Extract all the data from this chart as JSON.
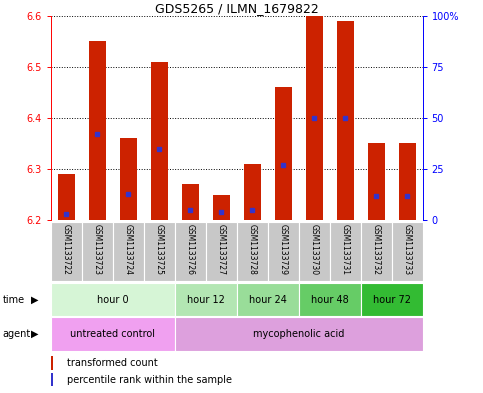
{
  "title": "GDS5265 / ILMN_1679822",
  "samples": [
    "GSM1133722",
    "GSM1133723",
    "GSM1133724",
    "GSM1133725",
    "GSM1133726",
    "GSM1133727",
    "GSM1133728",
    "GSM1133729",
    "GSM1133730",
    "GSM1133731",
    "GSM1133732",
    "GSM1133733"
  ],
  "bar_tops": [
    6.29,
    6.55,
    6.36,
    6.51,
    6.27,
    6.25,
    6.31,
    6.46,
    6.6,
    6.59,
    6.35,
    6.35
  ],
  "bar_bottom": 6.2,
  "ylim": [
    6.2,
    6.6
  ],
  "yticks_left": [
    6.2,
    6.3,
    6.4,
    6.5,
    6.6
  ],
  "yticks_right": [
    0,
    25,
    50,
    75,
    100
  ],
  "blue_percentiles": [
    3,
    42,
    13,
    35,
    5,
    4,
    5,
    27,
    50,
    50,
    12,
    12
  ],
  "bar_color": "#cc2200",
  "blue_color": "#3333cc",
  "bar_width": 0.55,
  "time_groups": [
    {
      "label": "hour 0",
      "start": 0,
      "end": 3
    },
    {
      "label": "hour 12",
      "start": 4,
      "end": 5
    },
    {
      "label": "hour 24",
      "start": 6,
      "end": 7
    },
    {
      "label": "hour 48",
      "start": 8,
      "end": 9
    },
    {
      "label": "hour 72",
      "start": 10,
      "end": 11
    }
  ],
  "time_colors": [
    "#d6f5d6",
    "#b3e6b3",
    "#99dd99",
    "#66cc66",
    "#33bb33"
  ],
  "agent_groups": [
    {
      "label": "untreated control",
      "start": 0,
      "end": 3
    },
    {
      "label": "mycophenolic acid",
      "start": 4,
      "end": 11
    }
  ],
  "agent_colors": [
    "#f0a0f0",
    "#dda0dd"
  ],
  "sample_bg": "#c8c8c8",
  "background_color": "#ffffff"
}
